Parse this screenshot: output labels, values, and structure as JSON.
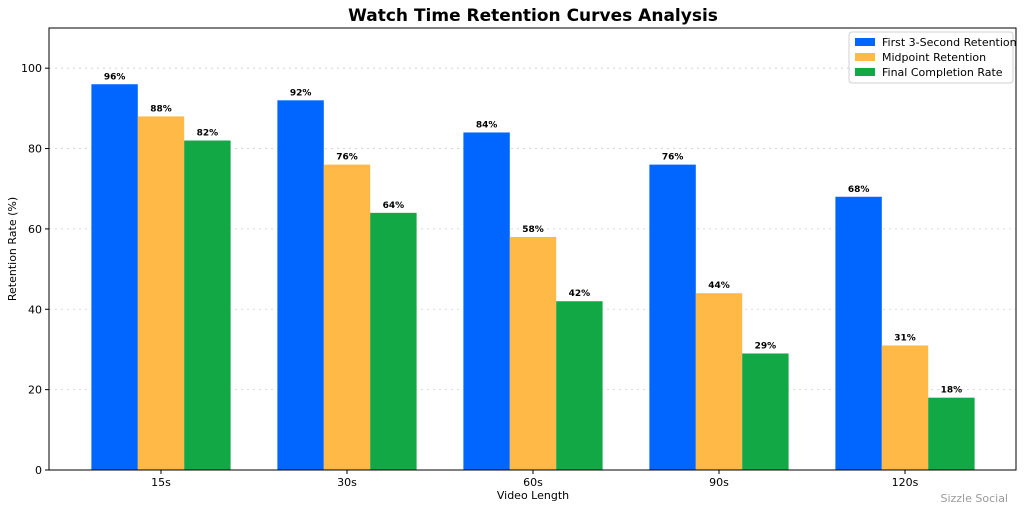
{
  "chart_data": {
    "type": "bar",
    "title": "Watch Time Retention Curves Analysis",
    "xlabel": "Video Length",
    "ylabel": "Retention Rate (%)",
    "ylim": [
      0,
      110
    ],
    "yticks": [
      0,
      20,
      40,
      60,
      80,
      100
    ],
    "grid": true,
    "legend_position": "top-right",
    "categories": [
      "15s",
      "30s",
      "60s",
      "90s",
      "120s"
    ],
    "series": [
      {
        "name": "First 3-Second Retention",
        "color": "#0066ff",
        "values": [
          96,
          92,
          84,
          76,
          68
        ]
      },
      {
        "name": "Midpoint Retention",
        "color": "#ffb946",
        "values": [
          88,
          76,
          58,
          44,
          31
        ]
      },
      {
        "name": "Final Completion Rate",
        "color": "#12a846",
        "values": [
          82,
          64,
          42,
          29,
          18
        ]
      }
    ],
    "value_suffix": "%"
  },
  "watermark": "Sizzle Social"
}
